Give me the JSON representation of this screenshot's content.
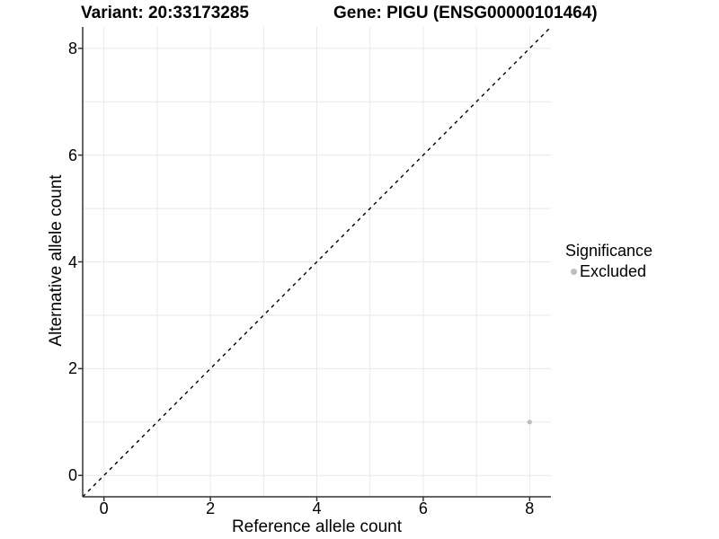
{
  "chart_data": {
    "type": "scatter",
    "title_left": "Variant: 20:33173285",
    "title_right": "Gene: PIGU (ENSG00000101464)",
    "xlabel": "Reference allele count",
    "ylabel": "Alternative allele count",
    "xlim": [
      -0.4,
      8.4
    ],
    "ylim": [
      -0.4,
      8.4
    ],
    "x_ticks": [
      0,
      2,
      4,
      6,
      8
    ],
    "y_ticks": [
      0,
      2,
      4,
      6,
      8
    ],
    "grid_values": [
      0,
      1,
      2,
      3,
      4,
      5,
      6,
      7,
      8
    ],
    "grid_on": true,
    "reference_line": {
      "style": "dashed",
      "equation": "y = x",
      "color": "#000000"
    },
    "series": [
      {
        "name": "Excluded",
        "color": "#bdbdbd",
        "points": [
          {
            "x": 8,
            "y": 1
          }
        ]
      }
    ],
    "legend": {
      "title": "Significance",
      "position": "right",
      "items": [
        {
          "label": "Excluded",
          "color": "#bdbdbd"
        }
      ]
    },
    "colors": {
      "grid": "#e8e8e8",
      "axis_line": "#333333",
      "tick_mark": "#333333",
      "text": "#000000",
      "background": "#ffffff"
    }
  }
}
